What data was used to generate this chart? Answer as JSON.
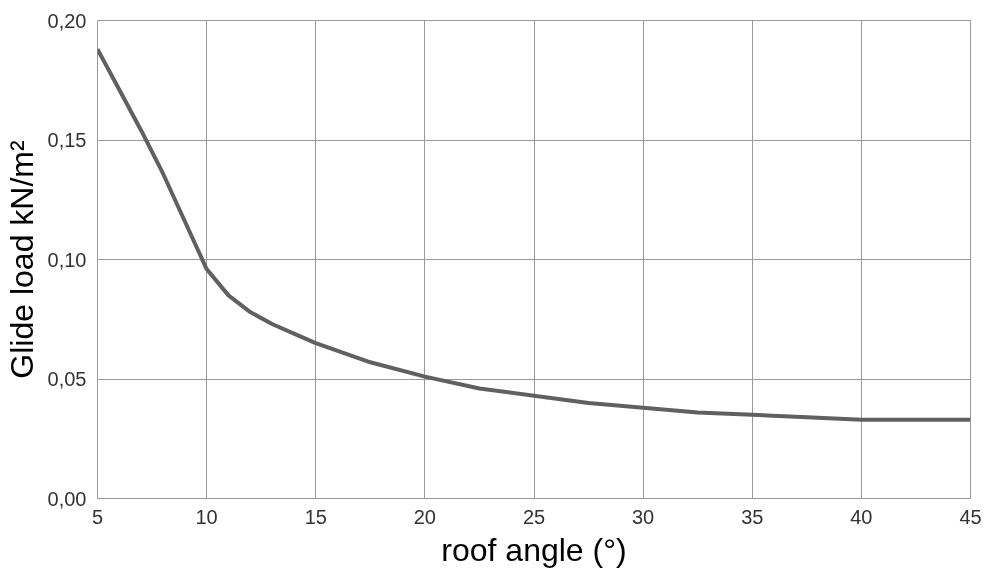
{
  "chart_data": {
    "type": "line",
    "xlabel": "roof angle (°)",
    "ylabel": "Glide load kN/m²",
    "x": [
      5,
      6,
      7,
      8,
      9,
      10,
      11,
      12,
      13,
      14,
      15,
      17.5,
      20,
      22.5,
      25,
      27.5,
      30,
      32.5,
      35,
      37.5,
      40,
      42.5,
      45
    ],
    "series": [
      {
        "color": "#606060",
        "values": [
          0.188,
          0.171,
          0.154,
          0.136,
          0.116,
          0.096,
          0.085,
          0.078,
          0.073,
          0.069,
          0.065,
          0.057,
          0.051,
          0.046,
          0.043,
          0.04,
          0.038,
          0.036,
          0.035,
          0.034,
          0.033,
          0.033,
          0.033
        ]
      }
    ],
    "xlim": [
      5,
      45
    ],
    "ylim": [
      0,
      0.2
    ],
    "xticks": [
      5,
      10,
      15,
      20,
      25,
      30,
      35,
      40,
      45
    ],
    "yticks": [
      {
        "value": 0,
        "label": "0,00"
      },
      {
        "value": 0.05,
        "label": "0,05"
      },
      {
        "value": 0.1,
        "label": "0,10"
      },
      {
        "value": 0.15,
        "label": "0,15"
      },
      {
        "value": 0.2,
        "label": "0,20"
      }
    ],
    "grid": true,
    "marker": "none",
    "line_style": "solid"
  }
}
